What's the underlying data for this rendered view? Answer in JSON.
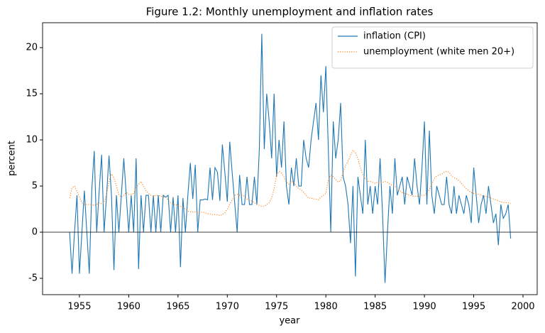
{
  "chart_data": {
    "type": "line",
    "title": "Figure 1.2: Monthly unemployment and inflation rates",
    "xlabel": "year",
    "ylabel": "percent",
    "xlim": [
      1951.26,
      2001.44
    ],
    "ylim": [
      -6.77,
      22.7
    ],
    "xticks": [
      1955,
      1960,
      1965,
      1970,
      1975,
      1980,
      1985,
      1990,
      1995,
      2000
    ],
    "yticks": [
      -5,
      0,
      5,
      10,
      15,
      20
    ],
    "hline": 0,
    "legend": "upper right",
    "x": [
      1954,
      1954.25,
      1954.5,
      1954.75,
      1955,
      1955.25,
      1955.5,
      1955.75,
      1956,
      1956.25,
      1956.5,
      1956.75,
      1957,
      1957.25,
      1957.5,
      1957.75,
      1958,
      1958.25,
      1958.5,
      1958.75,
      1959,
      1959.25,
      1959.5,
      1959.75,
      1960,
      1960.25,
      1960.5,
      1960.75,
      1961,
      1961.25,
      1961.5,
      1961.75,
      1962,
      1962.25,
      1962.5,
      1962.75,
      1963,
      1963.25,
      1963.5,
      1963.75,
      1964,
      1964.25,
      1964.5,
      1964.75,
      1965,
      1965.25,
      1965.5,
      1965.75,
      1966,
      1966.25,
      1966.5,
      1966.75,
      1967,
      1967.25,
      1967.5,
      1967.75,
      1968,
      1968.25,
      1968.5,
      1968.75,
      1969,
      1969.25,
      1969.5,
      1969.75,
      1970,
      1970.25,
      1970.5,
      1970.75,
      1971,
      1971.25,
      1971.5,
      1971.75,
      1972,
      1972.25,
      1972.5,
      1972.75,
      1973,
      1973.25,
      1973.5,
      1973.75,
      1974,
      1974.25,
      1974.5,
      1974.75,
      1975,
      1975.25,
      1975.5,
      1975.75,
      1976,
      1976.25,
      1976.5,
      1976.75,
      1977,
      1977.25,
      1977.5,
      1977.75,
      1978,
      1978.25,
      1978.5,
      1978.75,
      1979,
      1979.25,
      1979.5,
      1979.75,
      1980,
      1980.25,
      1980.5,
      1980.75,
      1981,
      1981.25,
      1981.5,
      1981.75,
      1982,
      1982.25,
      1982.5,
      1982.75,
      1983,
      1983.25,
      1983.5,
      1983.75,
      1984,
      1984.25,
      1984.5,
      1984.75,
      1985,
      1985.25,
      1985.5,
      1985.75,
      1986,
      1986.25,
      1986.5,
      1986.75,
      1987,
      1987.25,
      1987.5,
      1987.75,
      1988,
      1988.25,
      1988.5,
      1988.75,
      1989,
      1989.25,
      1989.5,
      1989.75,
      1990,
      1990.25,
      1990.5,
      1990.75,
      1991,
      1991.25,
      1991.5,
      1991.75,
      1992,
      1992.25,
      1992.5,
      1992.75,
      1993,
      1993.25,
      1993.5,
      1993.75,
      1994,
      1994.25,
      1994.5,
      1994.75,
      1995,
      1995.25,
      1995.5,
      1995.75,
      1996,
      1996.25,
      1996.5,
      1996.75,
      1997,
      1997.25,
      1997.5,
      1997.75,
      1998,
      1998.25,
      1998.5,
      1998.75
    ],
    "series": [
      {
        "name": "inflation (CPI)",
        "color": "#1f77b4",
        "style": "solid",
        "values": [
          0,
          -4.5,
          0,
          4,
          -4.5,
          0,
          4.5,
          0,
          -4.5,
          4.5,
          8.8,
          0,
          4.4,
          8.4,
          0,
          4,
          8.3,
          4,
          -4.1,
          4,
          0,
          4,
          8,
          4,
          0,
          4,
          0,
          8,
          -4,
          4,
          0,
          4,
          4,
          0,
          4,
          0,
          4,
          0,
          4,
          3.8,
          4,
          0,
          3.8,
          0,
          4,
          -3.8,
          3.7,
          0,
          4,
          7.5,
          3.6,
          7.3,
          0,
          3.5,
          3.5,
          3.6,
          3.5,
          7,
          3.5,
          7,
          6.5,
          3.4,
          9.5,
          6.5,
          3.3,
          9.8,
          6.4,
          3.2,
          0,
          6.2,
          3,
          3,
          6,
          3,
          3,
          6,
          3,
          9,
          21.5,
          9,
          15,
          12,
          8,
          15,
          6,
          10,
          7,
          12,
          5,
          3,
          7,
          5,
          8,
          5,
          5,
          10,
          8,
          7,
          10,
          12,
          14,
          10,
          17,
          13,
          18,
          9,
          0,
          12,
          8,
          10,
          14,
          6,
          5,
          3,
          -1.2,
          5,
          -4.8,
          6,
          4,
          2,
          10,
          3,
          5,
          2,
          5,
          3,
          8,
          2,
          -5.5,
          0,
          5,
          2,
          8,
          4,
          5,
          6,
          3,
          6,
          5,
          4,
          8,
          5,
          3,
          7,
          12,
          3,
          11,
          4,
          2,
          5,
          4,
          3,
          3,
          6,
          3,
          2,
          5,
          2,
          4,
          3,
          2,
          4,
          3,
          1,
          7,
          4,
          1,
          3,
          4,
          2,
          5,
          3,
          1,
          2,
          -1.4,
          3,
          1.5,
          2,
          3,
          -0.7
        ]
      },
      {
        "name": "unemployment (white men 20+)",
        "color": "#ff7f0e",
        "style": "dotted",
        "values": [
          3.7,
          4.8,
          5.0,
          4.4,
          3.8,
          3.2,
          3.0,
          3.0,
          3.0,
          3.0,
          2.9,
          3.0,
          3.2,
          3.1,
          3.2,
          4.1,
          5.5,
          6.3,
          5.9,
          5.0,
          4.1,
          3.8,
          4.0,
          4.3,
          4.1,
          4.1,
          4.2,
          4.8,
          5.2,
          5.5,
          5.0,
          4.5,
          4.2,
          4.0,
          3.9,
          4.0,
          4.0,
          3.9,
          3.8,
          3.8,
          3.5,
          3.2,
          3.0,
          3.0,
          2.9,
          2.8,
          2.7,
          2.5,
          2.3,
          2.2,
          2.2,
          2.2,
          2.1,
          2.1,
          2.2,
          2.1,
          2.0,
          2.0,
          1.9,
          1.9,
          1.9,
          1.8,
          1.9,
          2.1,
          2.5,
          3.0,
          3.5,
          4.0,
          4.1,
          4.0,
          4.0,
          3.9,
          3.6,
          3.5,
          3.4,
          3.2,
          3.0,
          2.9,
          2.8,
          2.8,
          3.0,
          3.2,
          3.7,
          4.7,
          6.2,
          6.6,
          6.4,
          6.0,
          5.4,
          5.2,
          5.5,
          5.4,
          5.0,
          4.7,
          4.6,
          4.3,
          4.0,
          3.7,
          3.7,
          3.6,
          3.6,
          3.5,
          3.8,
          4.0,
          4.2,
          5.7,
          6.2,
          6.0,
          5.7,
          5.4,
          5.6,
          6.5,
          7.2,
          7.7,
          8.3,
          8.9,
          8.6,
          8.0,
          7.0,
          6.2,
          5.8,
          5.5,
          5.5,
          5.4,
          5.3,
          5.4,
          5.3,
          5.4,
          5.5,
          5.4,
          5.2,
          5.1,
          5.0,
          4.7,
          4.5,
          4.3,
          4.2,
          4.1,
          4.0,
          3.9,
          3.9,
          3.9,
          3.9,
          4.0,
          4.0,
          4.2,
          4.6,
          5.2,
          5.8,
          6.1,
          6.2,
          6.3,
          6.5,
          6.6,
          6.5,
          6.1,
          5.9,
          5.8,
          5.6,
          5.3,
          5.0,
          4.7,
          4.5,
          4.3,
          4.2,
          4.2,
          4.1,
          4.0,
          3.9,
          3.9,
          3.8,
          3.7,
          3.6,
          3.5,
          3.4,
          3.3,
          3.2,
          3.2,
          3.2,
          3.1
        ]
      }
    ]
  }
}
